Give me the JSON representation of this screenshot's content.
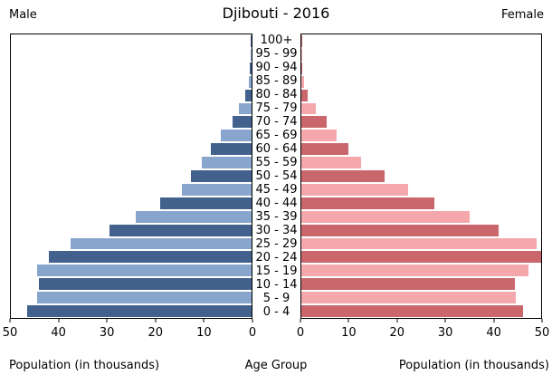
{
  "header": {
    "title": "Djibouti - 2016",
    "male_label": "Male",
    "female_label": "Female"
  },
  "chart_data": {
    "type": "bar",
    "subtype": "population_pyramid",
    "title": "Djibouti - 2016",
    "unit": "thousands",
    "xlabel_left": "Population (in thousands)",
    "xlabel_center": "Age Group",
    "xlabel_right": "Population (in thousands)",
    "xlim": [
      0,
      50
    ],
    "grid": false,
    "x_ticks_male_left_to_right": [
      50,
      40,
      30,
      20,
      10,
      0
    ],
    "x_ticks_female_left_to_right": [
      0,
      10,
      20,
      30,
      40,
      50
    ],
    "age_groups_top_down": [
      "100+",
      "95 - 99",
      "90 - 94",
      "85 - 89",
      "80 - 84",
      "75 - 79",
      "70 - 74",
      "65 - 69",
      "60 - 64",
      "55 - 59",
      "50 - 54",
      "45 - 49",
      "40 - 44",
      "35 - 39",
      "30 - 34",
      "25 - 29",
      "20 - 24",
      "15 - 19",
      "10 - 14",
      "5 - 9",
      "0 - 4"
    ],
    "series": [
      {
        "name": "Male",
        "side": "left",
        "values_top_down": [
          0.1,
          0.2,
          0.4,
          0.6,
          1.3,
          2.7,
          4.0,
          6.4,
          8.5,
          10.3,
          12.6,
          14.4,
          18.9,
          24.0,
          29.5,
          37.6,
          42.2,
          44.6,
          44.2,
          44.6,
          46.7
        ],
        "color_dark": "#43618D",
        "color_light": "#88A6CD"
      },
      {
        "name": "Female",
        "side": "right",
        "values_top_down": [
          0.05,
          0.1,
          0.2,
          0.5,
          1.4,
          3.0,
          5.2,
          7.3,
          9.8,
          12.4,
          17.4,
          22.3,
          27.7,
          35.1,
          41.1,
          49.1,
          50.0,
          47.3,
          44.5,
          44.7,
          46.3
        ],
        "color_dark": "#C9676C",
        "color_light": "#F4A8AC"
      }
    ],
    "color_rule": "bars alternate dark/light shades; age bands 0-4, 10-14, 20-24, ... use the dark shade",
    "axis_color": "#000000",
    "background": "#FFFFFF"
  }
}
